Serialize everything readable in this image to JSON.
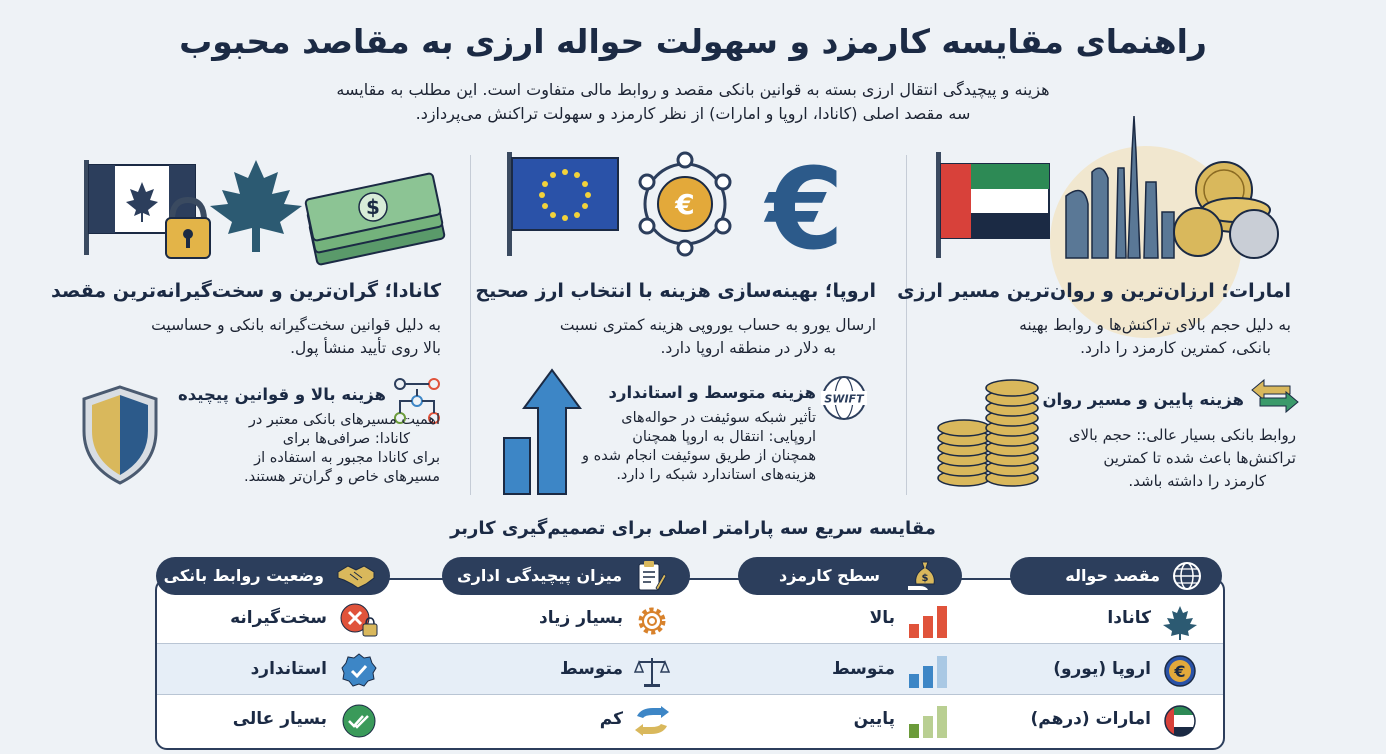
{
  "title": "راهنمای مقایسه کارمزد و سهولت حواله ارزی به مقاصد محبوب",
  "intro": {
    "line1": "هزینه و پیچیدگی انتقال ارزی بسته به قوانین بانکی مقصد و روابط مالی متفاوت است. این مطلب به مقایسه",
    "line2": "سه مقصد اصلی (کانادا، اروپا و امارات) از نظر کارمزد و سهولت تراکنش می‌پردازد."
  },
  "columns": {
    "uae": {
      "title": "امارات؛ ارزان‌ترین و روان‌ترین مسیر ارزی",
      "text1": "به دلیل حجم بالای تراکنش‌ها و روابط بهینه",
      "text2": "بانکی، کمترین کارمزد را دارد.",
      "sub_title": "هزینه پایین و مسیر روان",
      "sub1": "روابط بانکی بسیار عالی:: حجم بالای",
      "sub2": "تراکنش‌ها باعث شده تا کمترین",
      "sub3": "کارمزد را داشته باشد.",
      "icon": "dirham-coin-icon"
    },
    "europe": {
      "title": "اروپا؛ بهینه‌سازی هزینه با انتخاب ارز صحیح",
      "text1": "ارسال یورو به حساب یوروپی هزینه کمتری نسبت",
      "text2": "به دلار در منطقه اروپا دارد.",
      "sub_title": "هزینه متوسط و استاندارد",
      "sub1": "تأثیر شبکه سوئیفت در حواله‌های",
      "sub2": "اروپایی: انتقال به اروپا همچنان",
      "sub3": "همچنان از طریق سوئیفت انجام شده و",
      "sub4": "هزینه‌های استاندارد شبکه را دارد.",
      "swift": "SWIFT"
    },
    "canada": {
      "title": "کانادا؛ گران‌ترین و سخت‌گیرانه‌ترین مقصد",
      "text1": "به دلیل قوانین سخت‌گیرانه بانکی و حساسیت",
      "text2": "بالا روی تأیید منشأ پول.",
      "sub_title": "هزینه بالا و قوانین پیچیده",
      "sub1": "اهمیت مسیرهای بانکی معتبر در",
      "sub2": "کانادا: صرافی‌ها برای",
      "sub3": "برای کانادا مجبور به استفاده از",
      "sub4": "مسیرهای خاص و گران‌تر هستند.",
      "dollar_sign": "$"
    }
  },
  "comparison": {
    "title": "مقایسه سریع سه پارامتر اصلی برای تصمیم‌گیری کاربر",
    "headers": {
      "destination": "مقصد حواله",
      "fee": "سطح کارمزد",
      "complexity": "میزان پیچیدگی اداری",
      "relations": "وضعیت روابط بانکی"
    },
    "rows": [
      {
        "destination": "کانادا",
        "fee": "بالا",
        "complexity": "بسیار زیاد",
        "relations": "سخت‌گیرانه",
        "fee_level": 3
      },
      {
        "destination": "اروپا (یورو)",
        "fee": "متوسط",
        "complexity": "متوسط",
        "relations": "استاندارد",
        "fee_level": 2
      },
      {
        "destination": "امارات (درهم)",
        "fee": "پایین",
        "complexity": "کم",
        "relations": "بسیار عالی",
        "fee_level": 1
      }
    ],
    "euro_symbol": "€"
  },
  "colors": {
    "navy": "#2c3e5c",
    "red_bar": "#e0533b",
    "blue_bar": "#3d86c6",
    "green_bar": "#6b9b3a"
  }
}
